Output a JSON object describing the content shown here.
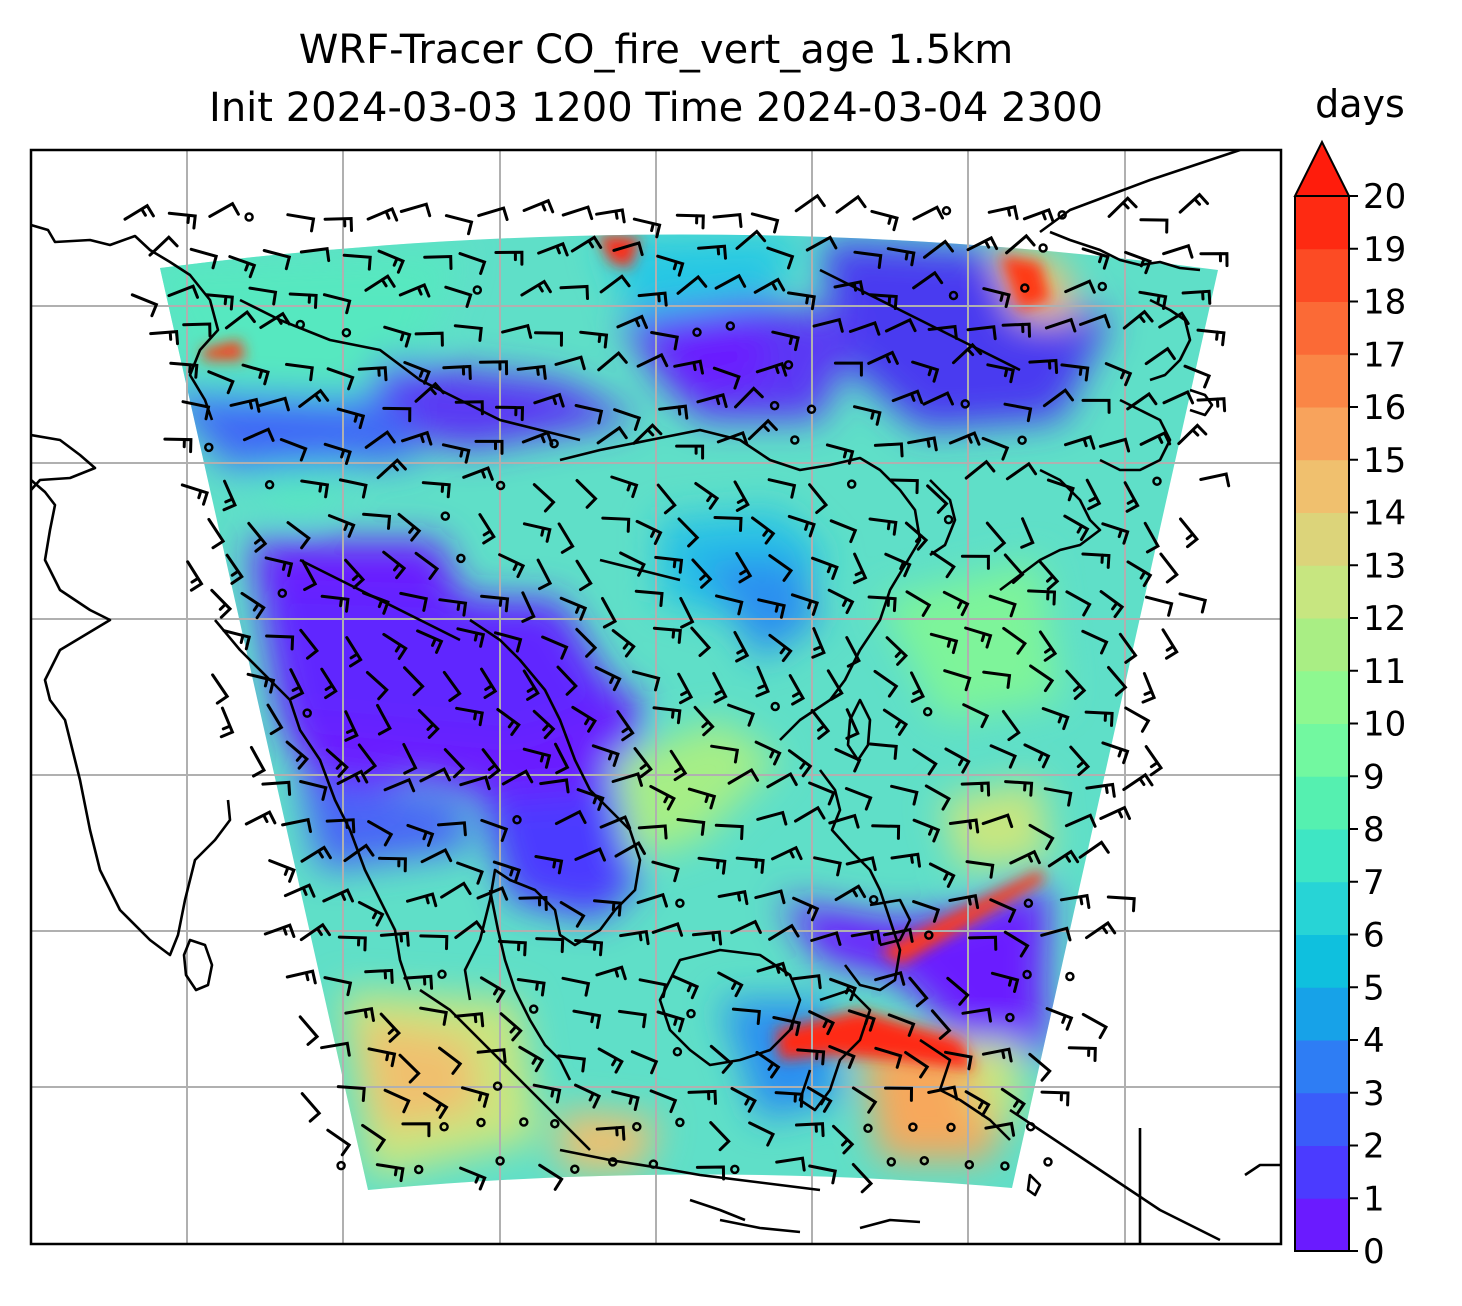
{
  "title": {
    "line1": "WRF-Tracer CO_fire_vert_age 1.5km",
    "line2": "Init 2024-03-03 1200 Time 2024-03-04 2300"
  },
  "colorbar": {
    "units": "days",
    "ticks": [
      "0",
      "1",
      "2",
      "3",
      "4",
      "5",
      "6",
      "7",
      "8",
      "9",
      "10",
      "11",
      "12",
      "13",
      "14",
      "15",
      "16",
      "17",
      "18",
      "19",
      "20"
    ],
    "extend": "max",
    "colors": [
      "#6a1bff",
      "#4b3bff",
      "#3a5cfa",
      "#2e7df4",
      "#17a2e8",
      "#0fc0de",
      "#27d4d6",
      "#3ee6c4",
      "#55f0b0",
      "#72f8a0",
      "#8ef890",
      "#a9ee84",
      "#c7e680",
      "#dcd47a",
      "#f0c06e",
      "#f8a35c",
      "#fa8646",
      "#fb6a36",
      "#fc4b24",
      "#fe2a12",
      "#ff1c0c"
    ]
  },
  "map": {
    "projection": "Lambert conformal",
    "gridlines": true,
    "coastlines": true,
    "field": "CO_fire_vert_age",
    "level": "1.5km",
    "overlay": "wind barbs"
  },
  "chart_data": {
    "type": "heatmap",
    "title": "WRF-Tracer CO_fire_vert_age 1.5km",
    "subtitle": "Init 2024-03-03 1200 Time 2024-03-04 2300",
    "colorbar_label": "days",
    "range": [
      0,
      20
    ],
    "levels": [
      0,
      1,
      2,
      3,
      4,
      5,
      6,
      7,
      8,
      9,
      10,
      11,
      12,
      13,
      14,
      15,
      16,
      17,
      18,
      19,
      20
    ],
    "extend": "max"
  }
}
